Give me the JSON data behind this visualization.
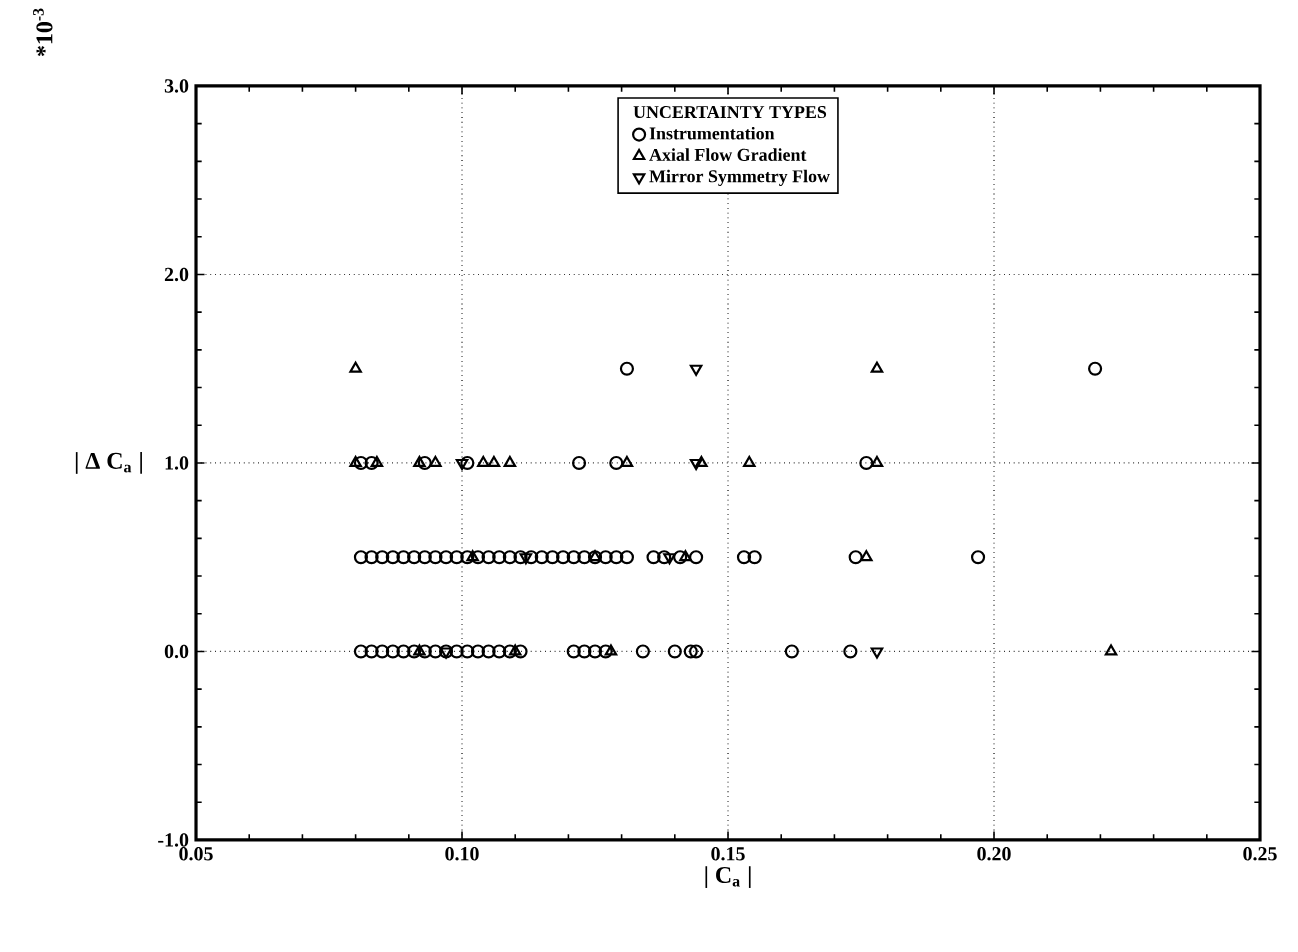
{
  "chart_data": {
    "type": "scatter",
    "xlabel": "| C$_{a}$ |",
    "ylabel": "| Δ C$_{a}$ |",
    "legend_title": "UNCERTAINTY TYPES",
    "annotations": [
      "*10$^{-3}$"
    ],
    "series": [
      {
        "name": "Instrumentation",
        "color": "#000000",
        "marker": "circle",
        "x": [
          0.081,
          0.083,
          0.085,
          0.087,
          0.089,
          0.091,
          0.093,
          0.095,
          0.097,
          0.099,
          0.101,
          0.103,
          0.105,
          0.107,
          0.109,
          0.111,
          0.121,
          0.123,
          0.125,
          0.127,
          0.134,
          0.14,
          0.143,
          0.144,
          0.162,
          0.173,
          0.081,
          0.083,
          0.085,
          0.087,
          0.089,
          0.091,
          0.093,
          0.095,
          0.097,
          0.099,
          0.101,
          0.103,
          0.105,
          0.107,
          0.109,
          0.111,
          0.113,
          0.115,
          0.117,
          0.119,
          0.121,
          0.123,
          0.125,
          0.127,
          0.129,
          0.131,
          0.136,
          0.138,
          0.141,
          0.144,
          0.153,
          0.155,
          0.174,
          0.197,
          0.081,
          0.083,
          0.093,
          0.101,
          0.122,
          0.129,
          0.176,
          0.131,
          0.219
        ],
        "values": [
          0,
          0,
          0,
          0,
          0,
          0,
          0,
          0,
          0,
          0,
          0,
          0,
          0,
          0,
          0,
          0,
          0,
          0,
          0,
          0,
          0,
          0,
          0,
          0,
          0,
          0,
          0.5,
          0.5,
          0.5,
          0.5,
          0.5,
          0.5,
          0.5,
          0.5,
          0.5,
          0.5,
          0.5,
          0.5,
          0.5,
          0.5,
          0.5,
          0.5,
          0.5,
          0.5,
          0.5,
          0.5,
          0.5,
          0.5,
          0.5,
          0.5,
          0.5,
          0.5,
          0.5,
          0.5,
          0.5,
          0.5,
          0.5,
          0.5,
          0.5,
          0.5,
          1,
          1,
          1,
          1,
          1,
          1,
          1,
          1.5,
          1.5
        ]
      },
      {
        "name": "Axial Flow Gradient",
        "color": "#000000",
        "marker": "triangle",
        "x": [
          0.092,
          0.11,
          0.128,
          0.222,
          0.102,
          0.125,
          0.142,
          0.176,
          0.08,
          0.084,
          0.092,
          0.095,
          0.104,
          0.106,
          0.109,
          0.131,
          0.145,
          0.154,
          0.178,
          0.08,
          0.178
        ],
        "values": [
          0,
          0,
          0,
          0,
          0.5,
          0.5,
          0.5,
          0.5,
          1,
          1,
          1,
          1,
          1,
          1,
          1,
          1,
          1,
          1,
          1,
          1.5,
          1.5
        ]
      },
      {
        "name": "Mirror Symmetry Flow",
        "color": "#000000",
        "marker": "triangle_down",
        "x": [
          0.097,
          0.178,
          0.112,
          0.139,
          0.1,
          0.144,
          0.144
        ],
        "values": [
          0,
          0,
          0.5,
          0.5,
          1,
          1,
          1.5
        ]
      }
    ],
    "xlim": [
      0.05,
      0.25
    ],
    "xticks": [
      {
        "value": 0.05,
        "label": "0.05"
      },
      {
        "value": 0.1,
        "label": "0.10"
      },
      {
        "value": 0.15,
        "label": "0.15"
      },
      {
        "value": 0.2,
        "label": "0.20"
      },
      {
        "value": 0.25,
        "label": "0.25"
      }
    ],
    "ylim": [
      -1,
      3
    ],
    "yticks": [
      {
        "value": -1,
        "label": "-1.0"
      },
      {
        "value": 0,
        "label": "0.0"
      },
      {
        "value": 1,
        "label": "1.0"
      },
      {
        "value": 2,
        "label": "2.0"
      },
      {
        "value": 3,
        "label": "3.0"
      }
    ],
    "grid": true,
    "legend": "top"
  }
}
